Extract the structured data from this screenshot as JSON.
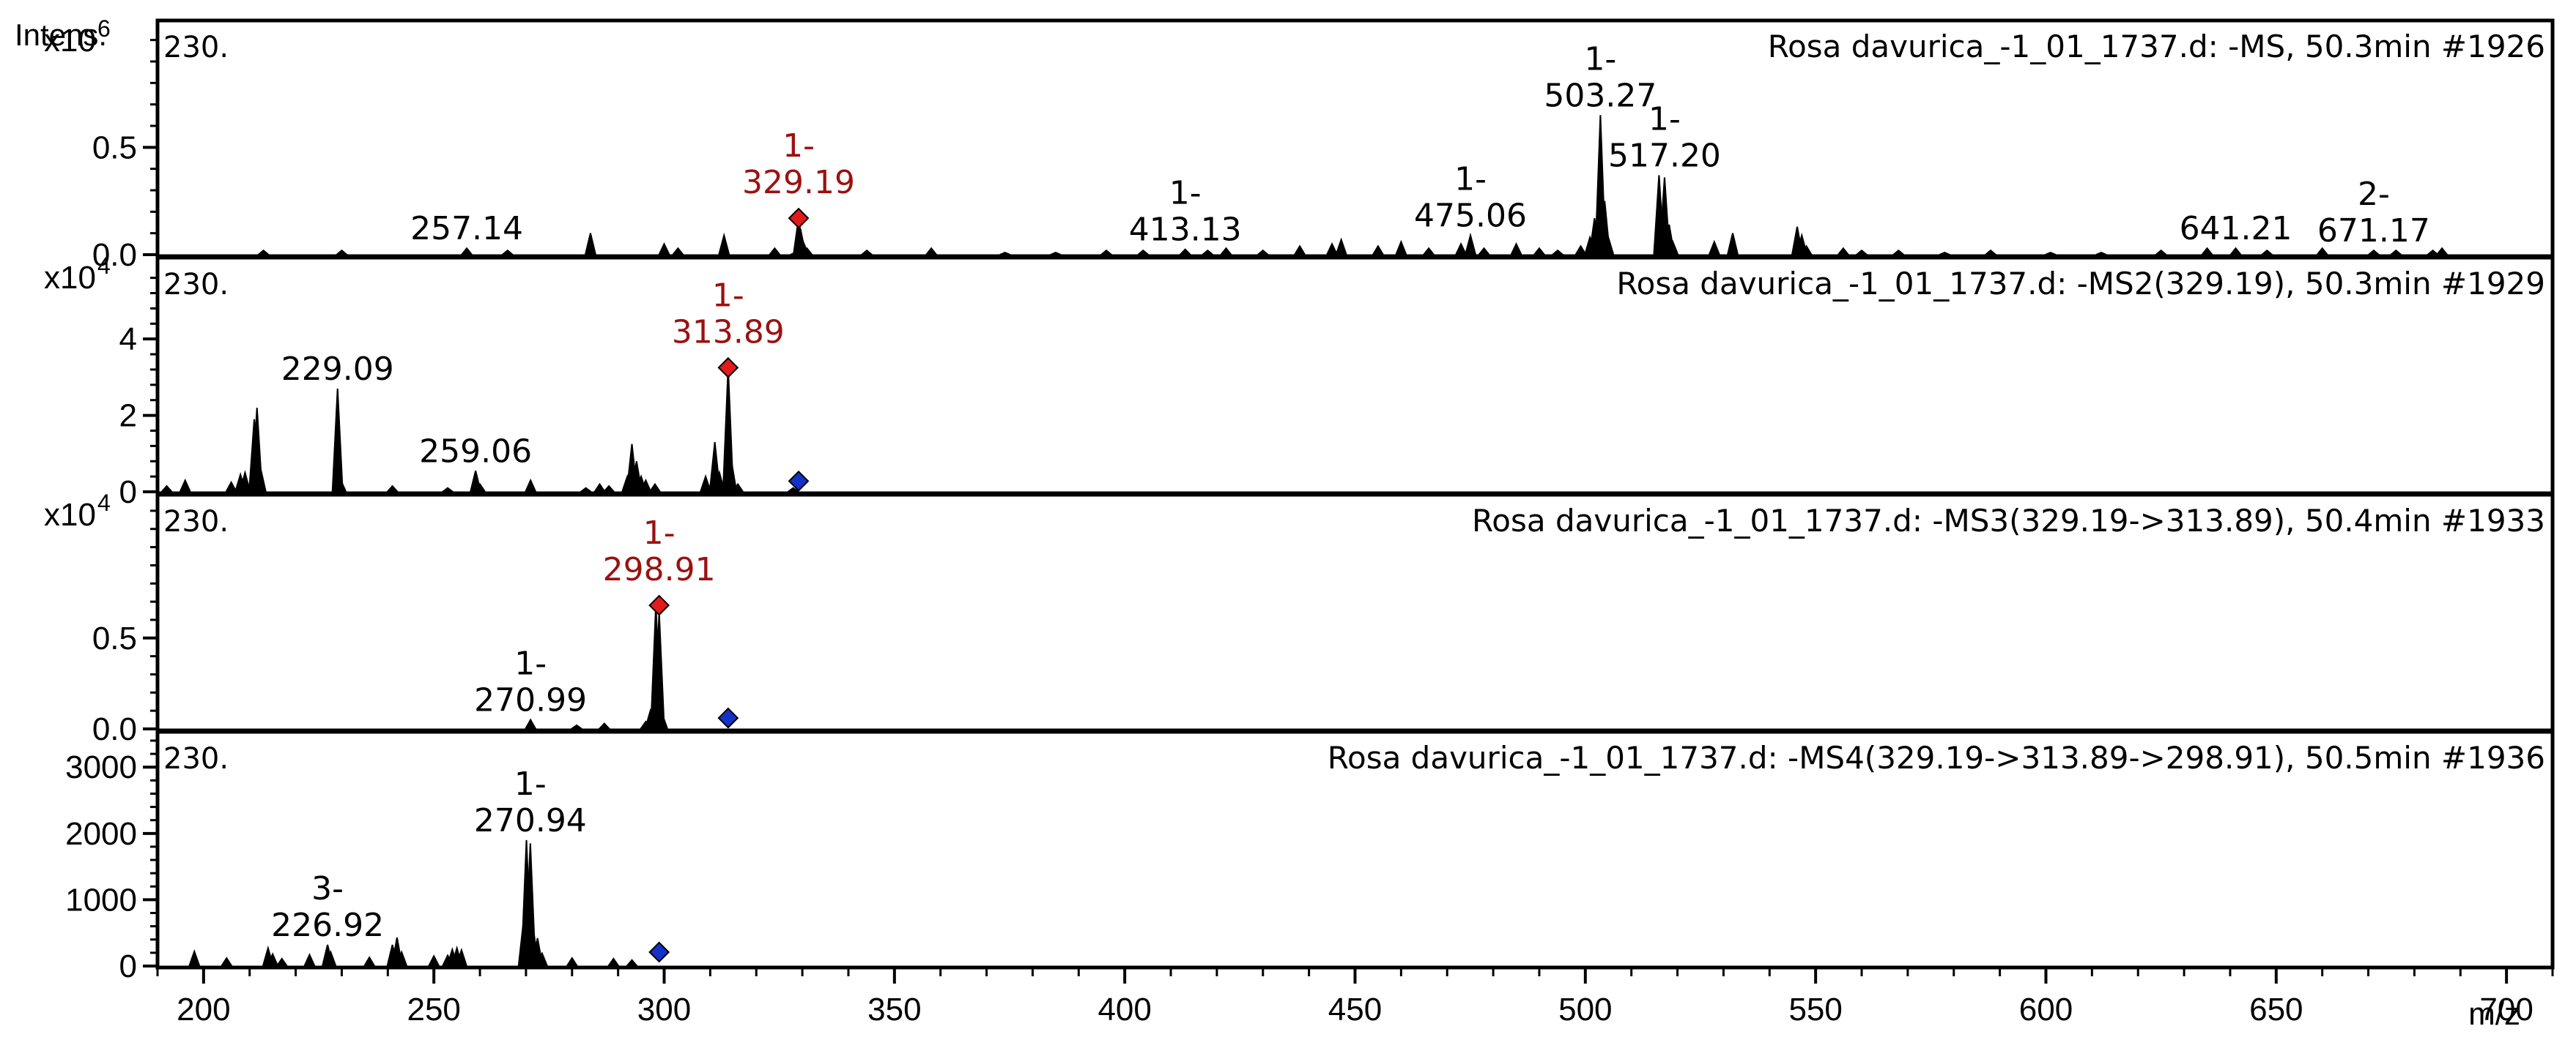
{
  "y_axis_label": "Intens.",
  "x_axis_label": "m/z",
  "x_ticks": [
    200,
    250,
    300,
    350,
    400,
    450,
    500,
    550,
    600,
    650,
    700
  ],
  "xlim": [
    190,
    710
  ],
  "colors": {
    "highlight": "#9b1111",
    "precursor_marker": "#1431c8",
    "line": "#000000",
    "frame": "#000000"
  },
  "chart_data": [
    {
      "type": "line",
      "tag": "230.",
      "title": "Rosa davurica_-1_01_1737.d: -MS, 50.3min #1926",
      "multiplier": "x10",
      "exponent": "6",
      "ylim": [
        0,
        1.05
      ],
      "yticks": [
        {
          "v": 0,
          "t": "0.0"
        },
        {
          "v": 0.5,
          "t": "0.5"
        }
      ],
      "peaks": [
        [
          213,
          0.02
        ],
        [
          230,
          0.02
        ],
        [
          257.14,
          0.03
        ],
        [
          266,
          0.02
        ],
        [
          284,
          0.1
        ],
        [
          300,
          0.05
        ],
        [
          303,
          0.03
        ],
        [
          313,
          0.09
        ],
        [
          324,
          0.03
        ],
        [
          328.5,
          0.01
        ],
        [
          329.19,
          0.17
        ],
        [
          329.6,
          0.12
        ],
        [
          330.2,
          0.06
        ],
        [
          331,
          0.03
        ],
        [
          344,
          0.02
        ],
        [
          358,
          0.03
        ],
        [
          374,
          0.01
        ],
        [
          385,
          0.01
        ],
        [
          396,
          0.02
        ],
        [
          404,
          0.02
        ],
        [
          413.13,
          0.025
        ],
        [
          418,
          0.02
        ],
        [
          422,
          0.03
        ],
        [
          430,
          0.02
        ],
        [
          438,
          0.04
        ],
        [
          445,
          0.05
        ],
        [
          447,
          0.07
        ],
        [
          455,
          0.04
        ],
        [
          460,
          0.06
        ],
        [
          466,
          0.03
        ],
        [
          473,
          0.05
        ],
        [
          475.06,
          0.09
        ],
        [
          478,
          0.03
        ],
        [
          485,
          0.05
        ],
        [
          490,
          0.03
        ],
        [
          494,
          0.02
        ],
        [
          499,
          0.04
        ],
        [
          501,
          0.08
        ],
        [
          502,
          0.17
        ],
        [
          503.27,
          0.65
        ],
        [
          504.2,
          0.25
        ],
        [
          505,
          0.08
        ],
        [
          516,
          0.37
        ],
        [
          517.2,
          0.36
        ],
        [
          518.2,
          0.14
        ],
        [
          519,
          0.06
        ],
        [
          528,
          0.06
        ],
        [
          532,
          0.1
        ],
        [
          546,
          0.13
        ],
        [
          547,
          0.09
        ],
        [
          548,
          0.04
        ],
        [
          556,
          0.03
        ],
        [
          560,
          0.02
        ],
        [
          568,
          0.02
        ],
        [
          578,
          0.01
        ],
        [
          588,
          0.02
        ],
        [
          601,
          0.01
        ],
        [
          612,
          0.01
        ],
        [
          625,
          0.02
        ],
        [
          635,
          0.03
        ],
        [
          641.21,
          0.03
        ],
        [
          648,
          0.02
        ],
        [
          660,
          0.03
        ],
        [
          671.17,
          0.02
        ],
        [
          676,
          0.02
        ],
        [
          684,
          0.02
        ],
        [
          686,
          0.03
        ]
      ],
      "labels": [
        {
          "charge": "",
          "mz": "257.14",
          "x": 257.14,
          "y": 0.03,
          "highlight": false
        },
        {
          "charge": "1-",
          "mz": "329.19",
          "x": 329.19,
          "y": 0.17,
          "highlight": true
        },
        {
          "charge": "1-",
          "mz": "413.13",
          "x": 413.13,
          "y": 0.025,
          "highlight": false
        },
        {
          "charge": "1-",
          "mz": "475.06",
          "x": 475.06,
          "y": 0.09,
          "highlight": false
        },
        {
          "charge": "1-",
          "mz": "503.27",
          "x": 503.27,
          "y": 0.65,
          "highlight": false
        },
        {
          "charge": "1-",
          "mz": "517.20",
          "x": 517.2,
          "y": 0.37,
          "highlight": false
        },
        {
          "charge": "",
          "mz": "641.21",
          "x": 641.21,
          "y": 0.03,
          "highlight": false
        },
        {
          "charge": "2-",
          "mz": "671.17",
          "x": 671.17,
          "y": 0.02,
          "highlight": false
        }
      ],
      "markers": [
        {
          "x": 329.19,
          "y": 0.17,
          "color": "red"
        }
      ]
    },
    {
      "type": "line",
      "tag": "230.",
      "title": "Rosa davurica_-1_01_1737.d: -MS2(329.19), 50.3min #1929",
      "multiplier": "x10",
      "exponent": "4",
      "ylim": [
        0,
        5.9
      ],
      "yticks": [
        {
          "v": 0,
          "t": "0"
        },
        {
          "v": 2,
          "t": "2"
        },
        {
          "v": 4,
          "t": "4"
        }
      ],
      "peaks": [
        [
          192,
          0.15
        ],
        [
          196,
          0.3
        ],
        [
          206,
          0.25
        ],
        [
          208,
          0.45
        ],
        [
          209,
          0.5
        ],
        [
          211,
          1.9
        ],
        [
          211.6,
          2.2
        ],
        [
          212.4,
          0.6
        ],
        [
          229.09,
          2.7
        ],
        [
          229.8,
          0.3
        ],
        [
          241,
          0.15
        ],
        [
          253,
          0.1
        ],
        [
          259.06,
          0.55
        ],
        [
          260,
          0.2
        ],
        [
          271,
          0.3
        ],
        [
          283,
          0.1
        ],
        [
          286,
          0.2
        ],
        [
          288,
          0.15
        ],
        [
          292,
          0.4
        ],
        [
          293,
          1.25
        ],
        [
          294,
          0.8
        ],
        [
          295,
          0.4
        ],
        [
          296,
          0.3
        ],
        [
          298,
          0.2
        ],
        [
          309,
          0.4
        ],
        [
          311,
          1.3
        ],
        [
          312,
          0.5
        ],
        [
          313.89,
          3.25
        ],
        [
          314.6,
          0.8
        ],
        [
          316,
          0.2
        ],
        [
          328,
          0.1
        ]
      ],
      "labels": [
        {
          "charge": "",
          "mz": "229.09",
          "x": 229.09,
          "y": 2.7,
          "highlight": false
        },
        {
          "charge": "",
          "mz": "259.06",
          "x": 259.06,
          "y": 0.55,
          "highlight": false
        },
        {
          "charge": "1-",
          "mz": "313.89",
          "x": 313.89,
          "y": 3.25,
          "highlight": true
        }
      ],
      "markers": [
        {
          "x": 313.89,
          "y": 3.25,
          "color": "red"
        },
        {
          "x": 329.19,
          "y": 0.28,
          "color": "blue"
        }
      ]
    },
    {
      "type": "line",
      "tag": "230.",
      "title": "Rosa davurica_-1_01_1737.d: -MS3(329.19->313.89), 50.4min #1933",
      "multiplier": "x10",
      "exponent": "4",
      "ylim": [
        0,
        1.24
      ],
      "yticks": [
        {
          "v": 0,
          "t": "0.0"
        },
        {
          "v": 0.5,
          "t": "0.5"
        }
      ],
      "peaks": [
        [
          270.99,
          0.05
        ],
        [
          281,
          0.02
        ],
        [
          287,
          0.03
        ],
        [
          296,
          0.04
        ],
        [
          297,
          0.1
        ],
        [
          298.2,
          0.68
        ],
        [
          298.91,
          0.64
        ],
        [
          299.6,
          0.08
        ]
      ],
      "labels": [
        {
          "charge": "1-",
          "mz": "270.99",
          "x": 270.99,
          "y": 0.05,
          "highlight": false
        },
        {
          "charge": "1-",
          "mz": "298.91",
          "x": 298.91,
          "y": 0.68,
          "highlight": true
        }
      ],
      "markers": [
        {
          "x": 298.91,
          "y": 0.68,
          "color": "red"
        },
        {
          "x": 313.89,
          "y": 0.06,
          "color": "blue"
        }
      ]
    },
    {
      "type": "line",
      "tag": "230.",
      "title": "Rosa davurica_-1_01_1737.d: -MS4(329.19->313.89->298.91), 50.5min #1936",
      "multiplier": "",
      "exponent": "",
      "ylim": [
        0,
        3400
      ],
      "yticks": [
        {
          "v": 0,
          "t": "0"
        },
        {
          "v": 1000,
          "t": "1000"
        },
        {
          "v": 2000,
          "t": "2000"
        },
        {
          "v": 3000,
          "t": "3000"
        }
      ],
      "peaks": [
        [
          198,
          220
        ],
        [
          205,
          120
        ],
        [
          214,
          270
        ],
        [
          215,
          180
        ],
        [
          217,
          110
        ],
        [
          223,
          170
        ],
        [
          226.92,
          320
        ],
        [
          227.6,
          210
        ],
        [
          236,
          130
        ],
        [
          241,
          320
        ],
        [
          242,
          430
        ],
        [
          243,
          210
        ],
        [
          250,
          150
        ],
        [
          253,
          160
        ],
        [
          254,
          250
        ],
        [
          255,
          270
        ],
        [
          256,
          240
        ],
        [
          269.5,
          700
        ],
        [
          270.1,
          1900
        ],
        [
          270.94,
          1850
        ],
        [
          271.6,
          550
        ],
        [
          272.5,
          420
        ],
        [
          273.5,
          190
        ],
        [
          280,
          120
        ],
        [
          289,
          110
        ],
        [
          293,
          90
        ]
      ],
      "labels": [
        {
          "charge": "3-",
          "mz": "226.92",
          "x": 226.92,
          "y": 320,
          "highlight": false
        },
        {
          "charge": "1-",
          "mz": "270.94",
          "x": 270.94,
          "y": 1900,
          "highlight": false
        }
      ],
      "markers": [
        {
          "x": 298.91,
          "y": 210,
          "color": "blue"
        }
      ]
    }
  ]
}
